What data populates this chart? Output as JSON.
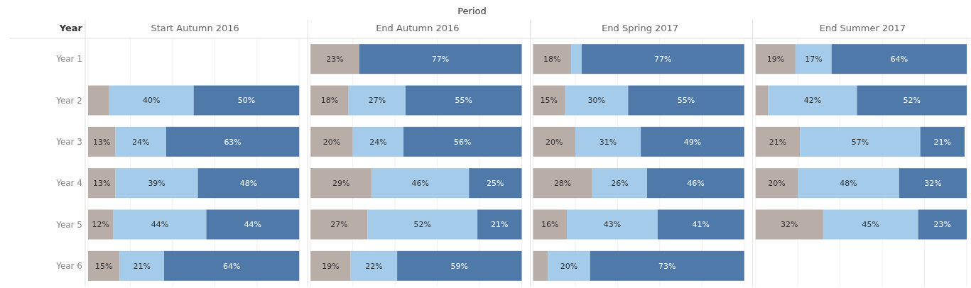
{
  "chart_data": [
    {
      "type": "bar",
      "orientation": "horizontal",
      "stacked": true,
      "title": "Start Autumn 2016",
      "ylabel": "Year",
      "annotations": [
        "Period"
      ],
      "categories": [
        "Year 1",
        "Year 2",
        "Year 3",
        "Year 4",
        "Year 5",
        "Year 6"
      ],
      "xlim": [
        0,
        100
      ],
      "xticks": [
        {
          "value": 0,
          "label": null
        },
        {
          "value": 20,
          "label": null
        },
        {
          "value": 40,
          "label": null
        },
        {
          "value": 60,
          "label": null
        },
        {
          "value": 80,
          "label": null
        },
        {
          "value": 100,
          "label": null
        }
      ],
      "grid": "x",
      "tick_labels": "y",
      "series": [
        {
          "color": "#b9ada8",
          "values": [
            null,
            10,
            13,
            13,
            12,
            15
          ],
          "value_labels": [
            null,
            null,
            "13%",
            "13%",
            "12%",
            "15%"
          ]
        },
        {
          "color": "#a4cbea",
          "values": [
            null,
            40,
            24,
            39,
            44,
            21
          ],
          "value_labels": [
            null,
            "40%",
            "24%",
            "39%",
            "44%",
            "21%"
          ]
        },
        {
          "color": "#4f79a8",
          "values": [
            null,
            50,
            63,
            48,
            44,
            64
          ],
          "value_labels": [
            null,
            "50%",
            "63%",
            "48%",
            "44%",
            "64%"
          ]
        }
      ]
    },
    {
      "type": "bar",
      "orientation": "horizontal",
      "stacked": true,
      "title": "End Autumn 2016",
      "categories": [
        null,
        null,
        null,
        null,
        null,
        null
      ],
      "xlim": [
        0,
        100
      ],
      "xticks": [
        {
          "value": 0,
          "label": null
        },
        {
          "value": 20,
          "label": null
        },
        {
          "value": 40,
          "label": null
        },
        {
          "value": 60,
          "label": null
        },
        {
          "value": 80,
          "label": null
        },
        {
          "value": 100,
          "label": null
        }
      ],
      "grid": "x",
      "tick_labels": false,
      "series": [
        {
          "color": "#b9ada8",
          "values": [
            23,
            18,
            20,
            29,
            27,
            19
          ],
          "value_labels": [
            "23%",
            "18%",
            "20%",
            "29%",
            "27%",
            "19%"
          ]
        },
        {
          "color": "#a4cbea",
          "values": [
            null,
            27,
            24,
            46,
            52,
            22
          ],
          "value_labels": [
            null,
            "27%",
            "24%",
            "46%",
            "52%",
            "22%"
          ]
        },
        {
          "color": "#4f79a8",
          "values": [
            77,
            55,
            56,
            25,
            21,
            59
          ],
          "value_labels": [
            "77%",
            "55%",
            "56%",
            "25%",
            "21%",
            "59%"
          ]
        }
      ]
    },
    {
      "type": "bar",
      "orientation": "horizontal",
      "stacked": true,
      "title": "End Spring 2017",
      "categories": [
        null,
        null,
        null,
        null,
        null,
        null
      ],
      "xlim": [
        0,
        100
      ],
      "xticks": [
        {
          "value": 0,
          "label": null
        },
        {
          "value": 20,
          "label": null
        },
        {
          "value": 40,
          "label": null
        },
        {
          "value": 60,
          "label": null
        },
        {
          "value": 80,
          "label": null
        },
        {
          "value": 100,
          "label": null
        }
      ],
      "grid": "x",
      "tick_labels": false,
      "series": [
        {
          "color": "#b9ada8",
          "values": [
            18,
            15,
            20,
            28,
            16,
            7
          ],
          "value_labels": [
            "18%",
            "15%",
            "20%",
            "28%",
            "16%",
            null
          ]
        },
        {
          "color": "#a4cbea",
          "values": [
            5,
            30,
            31,
            26,
            43,
            20
          ],
          "value_labels": [
            null,
            "30%",
            "31%",
            "26%",
            "43%",
            "20%"
          ]
        },
        {
          "color": "#4f79a8",
          "values": [
            77,
            55,
            49,
            46,
            41,
            73
          ],
          "value_labels": [
            "77%",
            "55%",
            "49%",
            "46%",
            "41%",
            "73%"
          ]
        }
      ]
    },
    {
      "type": "bar",
      "orientation": "horizontal",
      "stacked": true,
      "title": "End Summer 2017",
      "categories": [
        null,
        null,
        null,
        null,
        null,
        null
      ],
      "xlim": [
        0,
        100
      ],
      "xticks": [
        {
          "value": 0,
          "label": null
        },
        {
          "value": 20,
          "label": null
        },
        {
          "value": 40,
          "label": null
        },
        {
          "value": 60,
          "label": null
        },
        {
          "value": 80,
          "label": null
        },
        {
          "value": 100,
          "label": null
        }
      ],
      "grid": "x",
      "tick_labels": false,
      "series": [
        {
          "color": "#b9ada8",
          "values": [
            19,
            6,
            21,
            20,
            32,
            null
          ],
          "value_labels": [
            "19%",
            null,
            "21%",
            "20%",
            "32%",
            null
          ]
        },
        {
          "color": "#a4cbea",
          "values": [
            17,
            42,
            57,
            48,
            45,
            null
          ],
          "value_labels": [
            "17%",
            "42%",
            "57%",
            "48%",
            "45%",
            null
          ]
        },
        {
          "color": "#4f79a8",
          "values": [
            64,
            52,
            21,
            32,
            23,
            null
          ],
          "value_labels": [
            "64%",
            "52%",
            "21%",
            "32%",
            "23%",
            null
          ]
        }
      ]
    }
  ]
}
